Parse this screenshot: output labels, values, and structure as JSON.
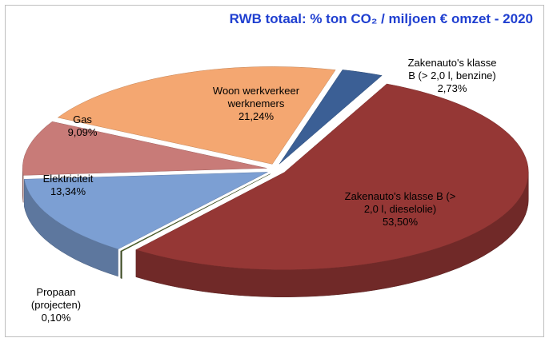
{
  "chart_data": {
    "type": "pie3d",
    "title": "RWB totaal: % ton CO₂ / miljoen € omzet - 2020",
    "categories": [
      "Zakenauto's klasse B (> 2,0 l, benzine)",
      "Zakenauto's klasse B (> 2,0 l, dieselolie)",
      "Propaan (projecten)",
      "Elektriciteit",
      "Gas",
      "Woon werkverkeer werknemers"
    ],
    "values": [
      2.73,
      53.5,
      0.1,
      13.34,
      9.09,
      21.24
    ],
    "value_labels": [
      "2,73%",
      "53,50%",
      "0,10%",
      "13,34%",
      "9,09%",
      "21,24%"
    ],
    "colors": [
      "#3b5f95",
      "#953735",
      "#4f6228",
      "#7c9fd3",
      "#c87b78",
      "#f4a771"
    ]
  }
}
